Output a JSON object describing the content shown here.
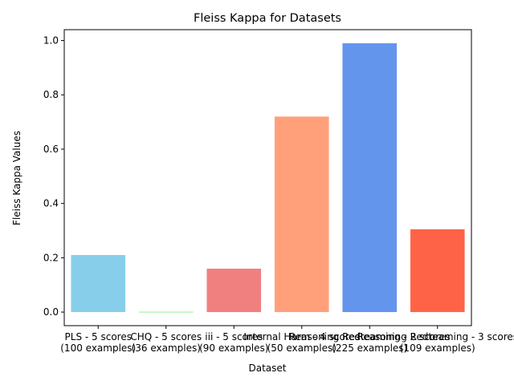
{
  "chart_data": {
    "type": "bar",
    "title": "Fleiss Kappa for Datasets",
    "xlabel": "Dataset",
    "ylabel": "Fleiss Kappa Values",
    "categories": [
      [
        "PLS - 5 scores",
        "(100 examples)"
      ],
      [
        "CHQ - 5 scores",
        "(36 examples)"
      ],
      [
        "iii - 5 scores",
        "(90 examples)"
      ],
      [
        "Internal Harm - 4 scores",
        "(50 examples)"
      ],
      [
        "Reasoning Redteaming - 2 scores",
        "(225 examples)"
      ],
      [
        "Reasoning Redteaming - 3 scores",
        "(109 examples)"
      ]
    ],
    "values": [
      0.21,
      -0.002,
      0.16,
      0.72,
      0.99,
      0.305
    ],
    "colors": [
      "#87ceeb",
      "#90ee90",
      "#f08080",
      "#ffa07a",
      "#6495ed",
      "#ff6347"
    ],
    "ylim": [
      -0.05,
      1.04
    ],
    "yticks": [
      "0.0",
      "0.2",
      "0.4",
      "0.6",
      "0.8",
      "1.0"
    ],
    "grid": false
  }
}
